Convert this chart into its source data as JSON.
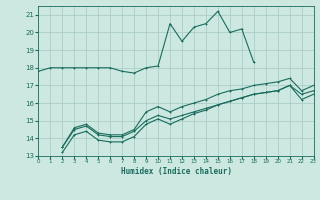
{
  "xlabel": "Humidex (Indice chaleur)",
  "background_color": "#cce8e0",
  "grid_color": "#aacfc8",
  "line_color": "#1a6b5e",
  "x_min": 0,
  "x_max": 23,
  "y_min": 13,
  "y_max": 21.5,
  "x_ticks": [
    0,
    1,
    2,
    3,
    4,
    5,
    6,
    7,
    8,
    9,
    10,
    11,
    12,
    13,
    14,
    15,
    16,
    17,
    18,
    19,
    20,
    21,
    22,
    23
  ],
  "y_ticks": [
    13,
    14,
    15,
    16,
    17,
    18,
    19,
    20,
    21
  ],
  "series1_x": [
    0,
    1,
    2,
    3,
    4,
    5,
    6,
    7,
    8,
    9,
    10,
    11,
    12,
    13,
    14,
    15,
    16,
    17,
    18
  ],
  "series1_y": [
    17.8,
    18.0,
    18.0,
    18.0,
    18.0,
    18.0,
    18.0,
    17.8,
    17.7,
    18.0,
    18.1,
    20.5,
    19.5,
    20.3,
    20.5,
    21.2,
    20.0,
    20.2,
    18.3
  ],
  "series2_x": [
    2,
    3,
    4,
    5,
    6,
    7,
    8,
    9,
    10,
    11,
    12,
    13,
    14,
    15,
    16,
    17,
    18,
    19,
    20,
    21,
    22,
    23
  ],
  "series2_y": [
    13.5,
    14.5,
    14.7,
    14.2,
    14.1,
    14.1,
    14.4,
    15.0,
    15.3,
    15.1,
    15.3,
    15.5,
    15.7,
    15.9,
    16.1,
    16.3,
    16.5,
    16.6,
    16.7,
    17.0,
    16.5,
    16.7
  ],
  "series3_x": [
    2,
    3,
    4,
    5,
    6,
    7,
    8,
    9,
    10,
    11,
    12,
    13,
    14,
    15,
    16,
    17,
    18,
    19,
    20,
    21,
    22,
    23
  ],
  "series3_y": [
    13.5,
    14.6,
    14.8,
    14.3,
    14.2,
    14.2,
    14.5,
    15.5,
    15.8,
    15.5,
    15.8,
    16.0,
    16.2,
    16.5,
    16.7,
    16.8,
    17.0,
    17.1,
    17.2,
    17.4,
    16.7,
    17.0
  ],
  "series4_x": [
    2,
    3,
    4,
    5,
    6,
    7,
    8,
    9,
    10,
    11,
    12,
    13,
    14,
    15,
    16,
    17,
    18,
    19,
    20,
    21,
    22,
    23
  ],
  "series4_y": [
    13.2,
    14.2,
    14.4,
    13.9,
    13.8,
    13.8,
    14.1,
    14.8,
    15.1,
    14.8,
    15.1,
    15.4,
    15.6,
    15.9,
    16.1,
    16.3,
    16.5,
    16.6,
    16.7,
    17.0,
    16.2,
    16.5
  ]
}
